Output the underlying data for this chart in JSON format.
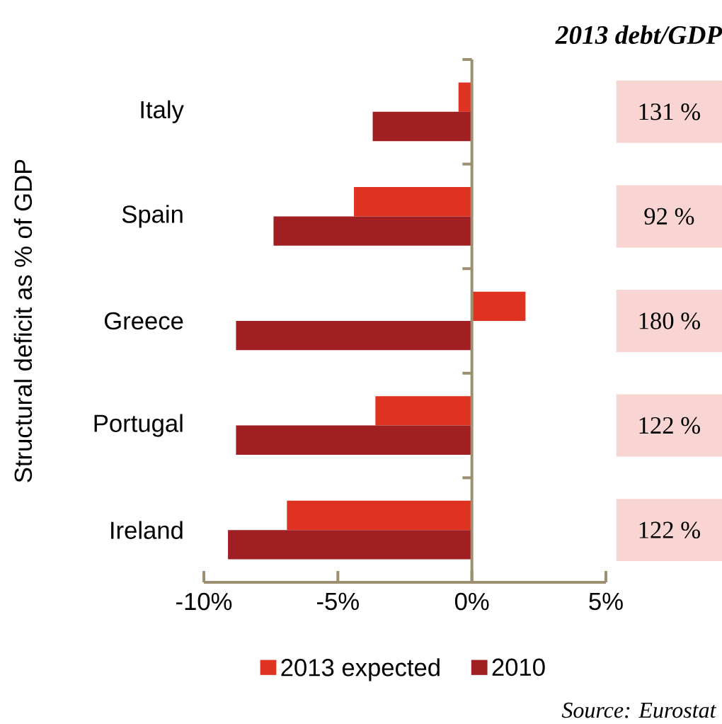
{
  "chart_data": {
    "type": "bar",
    "orientation": "horizontal",
    "ylabel": "Structural deficit as % of GDP",
    "categories": [
      "Italy",
      "Spain",
      "Greece",
      "Portugal",
      "Ireland"
    ],
    "series": [
      {
        "name": "2013 expected",
        "color": "#e03220",
        "values": [
          -0.5,
          -4.4,
          2.0,
          -3.6,
          -6.9
        ]
      },
      {
        "name": "2010",
        "color": "#a01f22",
        "values": [
          -3.7,
          -7.4,
          -8.8,
          -8.8,
          -9.1
        ]
      }
    ],
    "xlim": [
      -10,
      5
    ],
    "xticks": [
      {
        "value": -10,
        "label": "-10%"
      },
      {
        "value": -5,
        "label": "-5%"
      },
      {
        "value": 0,
        "label": "0%"
      },
      {
        "value": 5,
        "label": "5%"
      }
    ],
    "legend": "bottom",
    "ref_lines": [
      {
        "axis": "x",
        "value": 0,
        "color": "#9c9070"
      }
    ],
    "annotations": [
      "2013 debt/GDP",
      "131 %",
      "92 %",
      "180 %",
      "122 %",
      "122 %",
      "Source: Eurostat"
    ]
  }
}
